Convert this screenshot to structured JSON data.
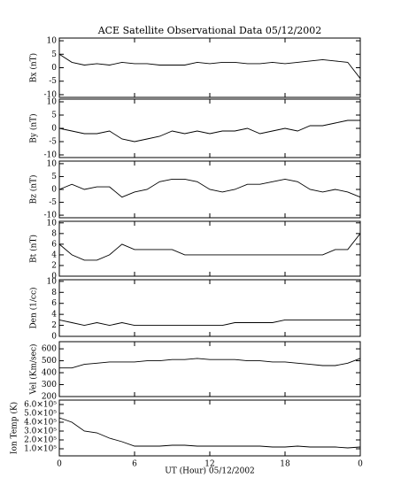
{
  "chart_data": [
    {
      "type": "line",
      "title": "ACE Satellite Observational Data   05/12/2002",
      "ylabel": "Bx (nT)",
      "color": "#000000",
      "x": [
        0,
        1,
        2,
        3,
        4,
        5,
        6,
        7,
        8,
        9,
        10,
        11,
        12,
        13,
        14,
        15,
        16,
        17,
        18,
        19,
        20,
        21,
        22,
        23,
        24
      ],
      "values": [
        5,
        2,
        1,
        1.5,
        1,
        2,
        1.5,
        1.5,
        1,
        1,
        1,
        2,
        1.5,
        2,
        2,
        1.5,
        1.5,
        2,
        1.5,
        2,
        2.5,
        3,
        2.5,
        2,
        -4
      ],
      "xlim": [
        0,
        24
      ],
      "xticks": [
        0,
        6,
        12,
        18,
        {
          "value": 24,
          "label": "0"
        }
      ],
      "ylim": [
        -11,
        11
      ],
      "yticks": [
        -10,
        -5,
        0,
        5,
        10
      ]
    },
    {
      "type": "line",
      "ylabel": "By (nT)",
      "color": "#000000",
      "x": [
        0,
        1,
        2,
        3,
        4,
        5,
        6,
        7,
        8,
        9,
        10,
        11,
        12,
        13,
        14,
        15,
        16,
        17,
        18,
        19,
        20,
        21,
        22,
        23,
        24
      ],
      "values": [
        0,
        -1,
        -2,
        -2,
        -1,
        -4,
        -5,
        -4,
        -3,
        -1,
        -2,
        -1,
        -2,
        -1,
        -1,
        0,
        -2,
        -1,
        0,
        -1,
        1,
        1,
        2,
        3,
        3
      ],
      "xlim": [
        0,
        24
      ],
      "xticks": [
        0,
        6,
        12,
        18,
        {
          "value": 24,
          "label": "0"
        }
      ],
      "ylim": [
        -11,
        11
      ],
      "yticks": [
        -10,
        -5,
        0,
        5,
        10
      ]
    },
    {
      "type": "line",
      "ylabel": "Bz (nT)",
      "color": "#000000",
      "x": [
        0,
        1,
        2,
        3,
        4,
        5,
        6,
        7,
        8,
        9,
        10,
        11,
        12,
        13,
        14,
        15,
        16,
        17,
        18,
        19,
        20,
        21,
        22,
        23,
        24
      ],
      "values": [
        0,
        2,
        0,
        1,
        1,
        -3,
        -1,
        0,
        3,
        4,
        4,
        3,
        0,
        -1,
        0,
        2,
        2,
        3,
        4,
        3,
        0,
        -1,
        0,
        -1,
        -3
      ],
      "xlim": [
        0,
        24
      ],
      "xticks": [
        0,
        6,
        12,
        18,
        {
          "value": 24,
          "label": "0"
        }
      ],
      "ylim": [
        -11,
        11
      ],
      "yticks": [
        -10,
        -5,
        0,
        5,
        10
      ]
    },
    {
      "type": "line",
      "ylabel": "Bt (nT)",
      "color": "#000000",
      "x": [
        0,
        1,
        2,
        3,
        4,
        5,
        6,
        7,
        8,
        9,
        10,
        11,
        12,
        13,
        14,
        15,
        16,
        17,
        18,
        19,
        20,
        21,
        22,
        23,
        24
      ],
      "values": [
        6,
        4,
        3,
        3,
        4,
        6,
        5,
        5,
        5,
        5,
        4,
        4,
        4,
        4,
        4,
        4,
        4,
        4,
        4,
        4,
        4,
        4,
        5,
        5,
        8
      ],
      "xlim": [
        0,
        24
      ],
      "xticks": [
        0,
        6,
        12,
        18,
        {
          "value": 24,
          "label": "0"
        }
      ],
      "ylim": [
        0,
        10.3
      ],
      "yticks": [
        0,
        2,
        4,
        6,
        8,
        10
      ]
    },
    {
      "type": "line",
      "ylabel": "Den (1/cc)",
      "color": "#000000",
      "x": [
        0,
        1,
        2,
        3,
        4,
        5,
        6,
        7,
        8,
        9,
        10,
        11,
        12,
        13,
        14,
        15,
        16,
        17,
        18,
        19,
        20,
        21,
        22,
        23,
        24
      ],
      "values": [
        3,
        2.5,
        2,
        2.5,
        2,
        2.5,
        2,
        2,
        2,
        2,
        2,
        2,
        2,
        2,
        2.5,
        2.5,
        2.5,
        2.5,
        3,
        3,
        3,
        3,
        3,
        3,
        3
      ],
      "xlim": [
        0,
        24
      ],
      "xticks": [
        0,
        6,
        12,
        18,
        {
          "value": 24,
          "label": "0"
        }
      ],
      "ylim": [
        0,
        10.3
      ],
      "yticks": [
        0,
        2,
        4,
        6,
        8,
        10
      ]
    },
    {
      "type": "line",
      "ylabel": "Vel (Km/sec)",
      "color": "#000000",
      "x": [
        0,
        1,
        2,
        3,
        4,
        5,
        6,
        7,
        8,
        9,
        10,
        11,
        12,
        13,
        14,
        15,
        16,
        17,
        18,
        19,
        20,
        21,
        22,
        23,
        24
      ],
      "values": [
        440,
        440,
        470,
        480,
        490,
        490,
        490,
        500,
        500,
        510,
        510,
        520,
        510,
        510,
        510,
        500,
        500,
        490,
        490,
        480,
        470,
        460,
        460,
        480,
        520
      ],
      "xlim": [
        0,
        24
      ],
      "xticks": [
        0,
        6,
        12,
        18,
        {
          "value": 24,
          "label": "0"
        }
      ],
      "ylim": [
        200,
        660
      ],
      "yticks": [
        200,
        300,
        400,
        500,
        600
      ]
    },
    {
      "type": "line",
      "ylabel": "Ion Temp (K)",
      "xlabel": "UT (Hour)  05/12/2002",
      "color": "#000000",
      "x": [
        0,
        1,
        2,
        3,
        4,
        5,
        6,
        7,
        8,
        9,
        10,
        11,
        12,
        13,
        14,
        15,
        16,
        17,
        18,
        19,
        20,
        21,
        22,
        23,
        24
      ],
      "values": [
        450000,
        400000,
        300000,
        280000,
        220000,
        180000,
        130000,
        130000,
        130000,
        140000,
        140000,
        130000,
        130000,
        130000,
        130000,
        130000,
        130000,
        120000,
        120000,
        130000,
        120000,
        120000,
        120000,
        110000,
        120000
      ],
      "xlim": [
        0,
        24
      ],
      "xticks": [
        0,
        6,
        12,
        18,
        {
          "value": 24,
          "label": "0"
        }
      ],
      "ylim": [
        20000,
        650000
      ],
      "yticks": [
        {
          "value": 100000,
          "label": "1.0×10⁵"
        },
        {
          "value": 200000,
          "label": "2.0×10⁵"
        },
        {
          "value": 300000,
          "label": "3.0×10⁵"
        },
        {
          "value": 400000,
          "label": "4.0×10⁵"
        },
        {
          "value": 500000,
          "label": "5.0×10⁵"
        },
        {
          "value": 600000,
          "label": "6.0×10⁵"
        }
      ]
    }
  ]
}
